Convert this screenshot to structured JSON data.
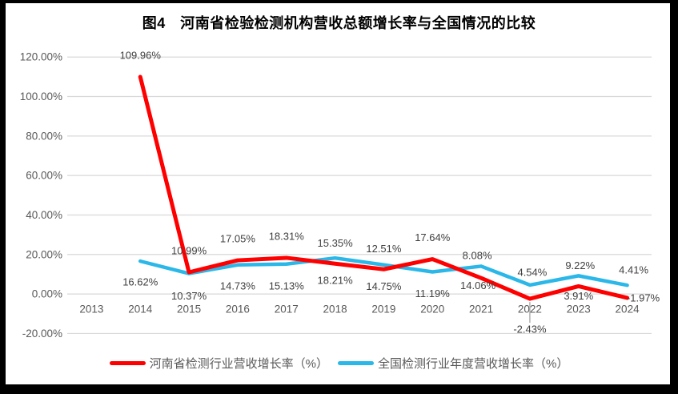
{
  "chart_data": {
    "type": "line",
    "title": "图4　河南省检验检测机构营收总额增长率与全国情况的比较",
    "categories": [
      "2013",
      "2014",
      "2015",
      "2016",
      "2017",
      "2018",
      "2019",
      "2020",
      "2021",
      "2022",
      "2023",
      "2024"
    ],
    "series": [
      {
        "key": "henan",
        "name": "河南省检测行业营收增长率（%）",
        "color": "#FE0000",
        "values": [
          null,
          109.96,
          10.99,
          17.05,
          18.31,
          15.35,
          12.51,
          17.64,
          8.08,
          -2.43,
          3.91,
          -1.97
        ],
        "labels": [
          null,
          "109.96%",
          "10.99%",
          "17.05%",
          "18.31%",
          "15.35%",
          "12.51%",
          "17.64%",
          "8.08%",
          "-2.43%",
          "3.91%",
          "-1.97%"
        ],
        "label_dx": [
          null,
          0,
          0,
          0,
          0,
          0,
          0,
          0,
          -5,
          0,
          0,
          20
        ],
        "label_dy": [
          null,
          -27,
          -27,
          -27,
          -27,
          -26,
          -26,
          -27,
          -28,
          38,
          12,
          0
        ]
      },
      {
        "key": "national",
        "name": "全国检测行业年度营收增长率（%）",
        "color": "#2BB8E8",
        "values": [
          null,
          16.62,
          10.37,
          14.73,
          15.13,
          18.21,
          14.75,
          11.19,
          14.06,
          4.54,
          9.22,
          4.41
        ],
        "labels": [
          null,
          "16.62%",
          "10.37%",
          "14.73%",
          "15.13%",
          "18.21%",
          "14.75%",
          "11.19%",
          "14.06%",
          "4.54%",
          "9.22%",
          "4.41%"
        ],
        "label_dx": [
          null,
          0,
          0,
          0,
          0,
          0,
          0,
          0,
          -4,
          3,
          2,
          8
        ],
        "label_dy": [
          null,
          26,
          28,
          26,
          27,
          28,
          27,
          27,
          24,
          -16,
          -13,
          -19
        ]
      }
    ],
    "ylim": [
      -20,
      120
    ],
    "yticks": [
      {
        "value": 120,
        "label": "120.00%"
      },
      {
        "value": 100,
        "label": "100.00%"
      },
      {
        "value": 80,
        "label": "80.00%"
      },
      {
        "value": 60,
        "label": "60.00%"
      },
      {
        "value": 40,
        "label": "40.00%"
      },
      {
        "value": 20,
        "label": "20.00%"
      },
      {
        "value": 0,
        "label": "0.00%"
      },
      {
        "value": -20,
        "label": "-20.00%"
      }
    ],
    "xlabel": "",
    "ylabel": "",
    "grid": true,
    "legend_position": "bottom",
    "annotations": [
      {
        "type": "leader-line",
        "series_key": "henan",
        "category": "2022"
      }
    ],
    "colors": {
      "gridline": "#D9D9D9",
      "axis_text": "#595959",
      "data_label_text": "#404040",
      "leader_line": "#A6A6A6",
      "title_text": "#000000",
      "frame": "#000000",
      "background": "#FFFFFF"
    }
  }
}
